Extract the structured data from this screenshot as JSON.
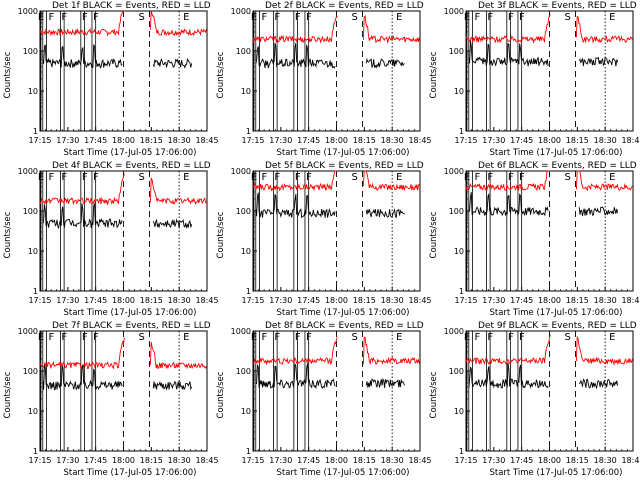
{
  "common": {
    "xlabel": "Start Time (17-Jul-05 17:06:00)",
    "ylabel": "Counts/sec",
    "x_ticks": [
      "17:15",
      "17:30",
      "17:45",
      "18:00",
      "18:15",
      "18:30",
      "18:45"
    ],
    "y_ticks": [
      "1",
      "10",
      "100",
      "1000"
    ],
    "markers": {
      "S": "S",
      "E": "E",
      "F": "F"
    },
    "colors": {
      "events": "#000000",
      "lld": "#ff0000"
    }
  },
  "chart_data": [
    {
      "type": "line",
      "title": "Det 1f BLACK = Events, RED = LLD",
      "xlabel": "Start Time (17-Jul-05 17:06:00)",
      "ylabel": "Counts/sec",
      "ylim": [
        1,
        1000
      ],
      "yscale": "log",
      "xlim_min": [
        9,
        99
      ],
      "series": [
        {
          "name": "Events",
          "color": "#000000",
          "level": 50
        },
        {
          "name": "LLD",
          "color": "#ff0000",
          "level": 300
        }
      ]
    },
    {
      "type": "line",
      "title": "Det 2f BLACK = Events, RED = LLD",
      "xlabel": "Start Time (17-Jul-05 17:06:00)",
      "ylabel": "Counts/sec",
      "ylim": [
        1,
        1000
      ],
      "yscale": "log",
      "xlim_min": [
        9,
        99
      ],
      "series": [
        {
          "name": "Events",
          "color": "#000000",
          "level": 50
        },
        {
          "name": "LLD",
          "color": "#ff0000",
          "level": 200
        }
      ]
    },
    {
      "type": "line",
      "title": "Det 3f BLACK = Events, RED = LLD",
      "xlabel": "Start Time (17-Jul-05 17:06:00)",
      "ylabel": "Counts/sec",
      "ylim": [
        1,
        1000
      ],
      "yscale": "log",
      "xlim_min": [
        9,
        99
      ],
      "series": [
        {
          "name": "Events",
          "color": "#000000",
          "level": 55
        },
        {
          "name": "LLD",
          "color": "#ff0000",
          "level": 200
        }
      ]
    },
    {
      "type": "line",
      "title": "Det 4f BLACK = Events, RED = LLD",
      "xlabel": "Start Time (17-Jul-05 17:06:00)",
      "ylabel": "Counts/sec",
      "ylim": [
        1,
        1000
      ],
      "yscale": "log",
      "xlim_min": [
        9,
        99
      ],
      "series": [
        {
          "name": "Events",
          "color": "#000000",
          "level": 50
        },
        {
          "name": "LLD",
          "color": "#ff0000",
          "level": 180
        }
      ]
    },
    {
      "type": "line",
      "title": "Det 5f BLACK = Events, RED = LLD",
      "xlabel": "Start Time (17-Jul-05 17:06:00)",
      "ylabel": "Counts/sec",
      "ylim": [
        1,
        1000
      ],
      "yscale": "log",
      "xlim_min": [
        9,
        99
      ],
      "series": [
        {
          "name": "Events",
          "color": "#000000",
          "level": 90
        },
        {
          "name": "LLD",
          "color": "#ff0000",
          "level": 400
        }
      ]
    },
    {
      "type": "line",
      "title": "Det 6f BLACK = Events, RED = LLD",
      "xlabel": "Start Time (17-Jul-05 17:06:00)",
      "ylabel": "Counts/sec",
      "ylim": [
        1,
        1000
      ],
      "yscale": "log",
      "xlim_min": [
        9,
        99
      ],
      "series": [
        {
          "name": "Events",
          "color": "#000000",
          "level": 100
        },
        {
          "name": "LLD",
          "color": "#ff0000",
          "level": 400
        }
      ]
    },
    {
      "type": "line",
      "title": "Det 7f BLACK = Events, RED = LLD",
      "xlabel": "Start Time (17-Jul-05 17:06:00)",
      "ylabel": "Counts/sec",
      "ylim": [
        1,
        1000
      ],
      "yscale": "log",
      "xlim_min": [
        9,
        99
      ],
      "series": [
        {
          "name": "Events",
          "color": "#000000",
          "level": 45
        },
        {
          "name": "LLD",
          "color": "#ff0000",
          "level": 140
        }
      ]
    },
    {
      "type": "line",
      "title": "Det 8f BLACK = Events, RED = LLD",
      "xlabel": "Start Time (17-Jul-05 17:06:00)",
      "ylabel": "Counts/sec",
      "ylim": [
        1,
        1000
      ],
      "yscale": "log",
      "xlim_min": [
        9,
        99
      ],
      "series": [
        {
          "name": "Events",
          "color": "#000000",
          "level": 50
        },
        {
          "name": "LLD",
          "color": "#ff0000",
          "level": 180
        }
      ]
    },
    {
      "type": "line",
      "title": "Det 9f BLACK = Events, RED = LLD",
      "xlabel": "Start Time (17-Jul-05 17:06:00)",
      "ylabel": "Counts/sec",
      "ylim": [
        1,
        1000
      ],
      "yscale": "log",
      "xlim_min": [
        9,
        99
      ],
      "series": [
        {
          "name": "Events",
          "color": "#000000",
          "level": 50
        },
        {
          "name": "LLD",
          "color": "#ff0000",
          "level": 180
        }
      ]
    }
  ],
  "panels": [
    {
      "title": "Det 1f BLACK = Events, RED = LLD"
    },
    {
      "title": "Det 2f BLACK = Events, RED = LLD"
    },
    {
      "title": "Det 3f BLACK = Events, RED = LLD"
    },
    {
      "title": "Det 4f BLACK = Events, RED = LLD"
    },
    {
      "title": "Det 5f BLACK = Events, RED = LLD"
    },
    {
      "title": "Det 6f BLACK = Events, RED = LLD"
    },
    {
      "title": "Det 7f BLACK = Events, RED = LLD"
    },
    {
      "title": "Det 8f BLACK = Events, RED = LLD"
    },
    {
      "title": "Det 9f BLACK = Events, RED = LLD"
    }
  ]
}
